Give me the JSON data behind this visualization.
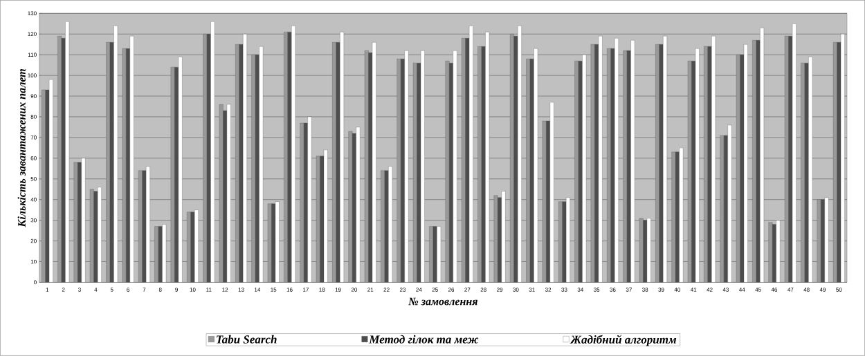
{
  "chart_data": {
    "type": "bar",
    "xlabel": "№ замовлення",
    "ylabel": "Кількість завантажених палет",
    "categories": [
      "1",
      "2",
      "3",
      "4",
      "5",
      "6",
      "7",
      "8",
      "9",
      "10",
      "11",
      "12",
      "13",
      "14",
      "15",
      "16",
      "17",
      "18",
      "19",
      "20",
      "21",
      "22",
      "23",
      "24",
      "25",
      "26",
      "27",
      "28",
      "29",
      "30",
      "31",
      "32",
      "33",
      "34",
      "35",
      "36",
      "37",
      "38",
      "39",
      "40",
      "41",
      "42",
      "43",
      "44",
      "45",
      "46",
      "47",
      "48",
      "49",
      "50"
    ],
    "series": [
      {
        "name": "Tabu Search",
        "color": "#999999",
        "values": [
          93,
          119,
          58,
          45,
          116,
          113,
          54,
          27,
          104,
          34,
          120,
          86,
          115,
          110,
          38,
          121,
          77,
          61,
          116,
          73,
          112,
          54,
          108,
          106,
          27,
          107,
          118,
          114,
          42,
          120,
          108,
          78,
          39,
          107,
          115,
          113,
          112,
          31,
          115,
          63,
          107,
          114,
          71,
          110,
          117,
          29,
          119,
          106,
          40,
          116
        ]
      },
      {
        "name": "Метод гілок та меж",
        "color": "#4d4d4d",
        "values": [
          93,
          118,
          58,
          44,
          116,
          113,
          54,
          27,
          104,
          34,
          120,
          83,
          115,
          110,
          38,
          121,
          77,
          61,
          116,
          72,
          111,
          54,
          108,
          106,
          27,
          106,
          118,
          114,
          41,
          119,
          108,
          78,
          39,
          107,
          115,
          113,
          112,
          30,
          115,
          63,
          107,
          114,
          71,
          110,
          117,
          28,
          119,
          106,
          40,
          116
        ]
      },
      {
        "name": "Жадібний алгоритм",
        "color": "#ffffff",
        "values": [
          98,
          126,
          60,
          46,
          124,
          119,
          56,
          28,
          109,
          35,
          126,
          86,
          120,
          114,
          39,
          124,
          80,
          64,
          121,
          75,
          116,
          56,
          112,
          112,
          27,
          112,
          124,
          121,
          44,
          124,
          113,
          87,
          41,
          110,
          119,
          118,
          117,
          31,
          119,
          65,
          113,
          119,
          76,
          115,
          123,
          30,
          125,
          109,
          41,
          120
        ]
      }
    ],
    "ylim": [
      0,
      130
    ],
    "yticks": [
      0,
      10,
      20,
      30,
      40,
      50,
      60,
      70,
      80,
      90,
      100,
      110,
      120,
      130
    ],
    "grid": "y",
    "legend": "bottom"
  }
}
